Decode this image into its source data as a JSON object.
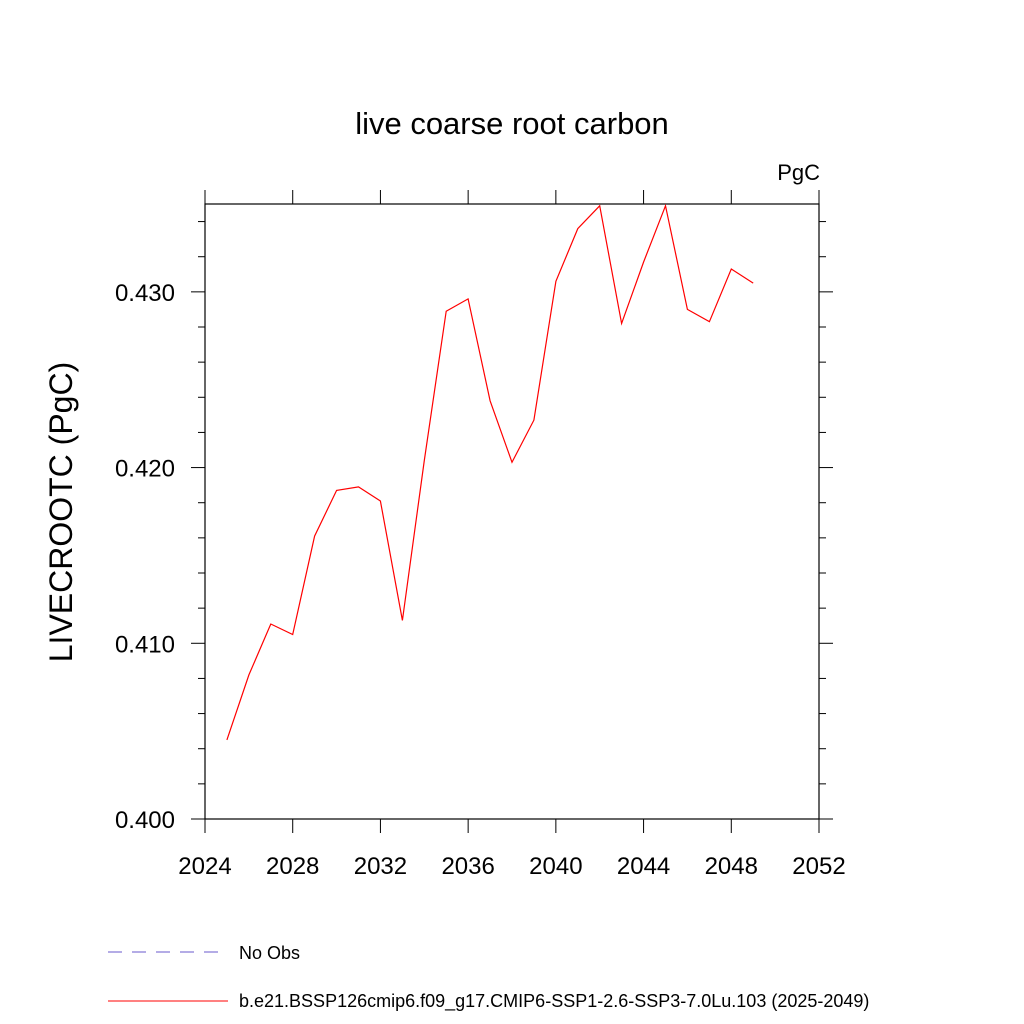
{
  "chart_data": {
    "type": "line",
    "title": "live coarse root carbon",
    "units": "PgC",
    "ylabel": "LIVECROOTC  (PgC)",
    "xlabel": "",
    "xlim": [
      2024,
      2052
    ],
    "ylim": [
      0.4,
      0.435
    ],
    "xticks": [
      2024,
      2028,
      2032,
      2036,
      2040,
      2044,
      2048,
      2052
    ],
    "xtick_labels": [
      "2024",
      "2028",
      "2032",
      "2036",
      "2040",
      "2044",
      "2048",
      "2052"
    ],
    "yticks": [
      0.4,
      0.41,
      0.42,
      0.43
    ],
    "ytick_labels": [
      "0.400",
      "0.410",
      "0.420",
      "0.430"
    ],
    "series": [
      {
        "name": "b.e21.BSSP126cmip6.f09_g17.CMIP6-SSP1-2.6-SSP3-7.0Lu.103 (2025-2049)",
        "color": "#ff0000",
        "x": [
          2025,
          2026,
          2027,
          2028,
          2029,
          2030,
          2031,
          2032,
          2033,
          2034,
          2035,
          2036,
          2037,
          2038,
          2039,
          2040,
          2041,
          2042,
          2043,
          2044,
          2045,
          2046,
          2047,
          2048,
          2049
        ],
        "values": [
          0.4045,
          0.4082,
          0.4111,
          0.4105,
          0.4161,
          0.4187,
          0.4189,
          0.4181,
          0.4113,
          0.4204,
          0.4289,
          0.4296,
          0.4238,
          0.4203,
          0.4227,
          0.4306,
          0.4336,
          0.4349,
          0.4282,
          0.4317,
          0.4349,
          0.429,
          0.4283,
          0.4313,
          0.4305
        ]
      }
    ],
    "legend": [
      {
        "label": "No Obs",
        "color": "#6a5acd",
        "dash": true
      },
      {
        "label": "b.e21.BSSP126cmip6.f09_g17.CMIP6-SSP1-2.6-SSP3-7.0Lu.103 (2025-2049)",
        "color": "#ff0000",
        "dash": false
      }
    ],
    "grid": false,
    "legend_placement": "bottom"
  }
}
